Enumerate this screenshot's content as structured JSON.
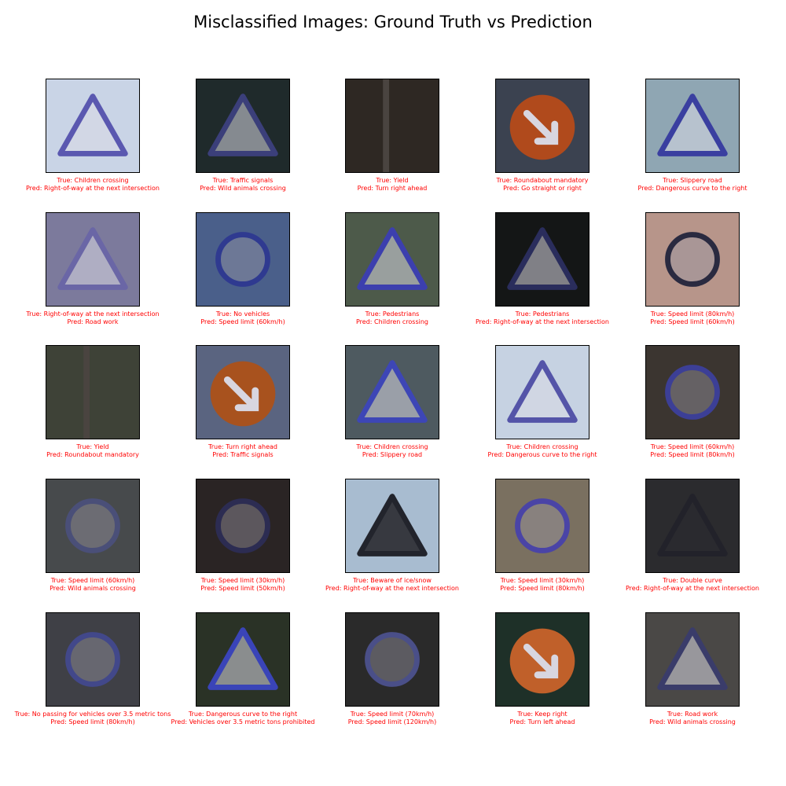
{
  "title": "Misclassified Images: Ground Truth vs Prediction",
  "true_prefix": "True: ",
  "pred_prefix": "Pred: ",
  "caption_color": "#ff0000",
  "items": [
    {
      "true_label": "Children crossing",
      "pred_label": "Right-of-way at the next intersection",
      "sign": "triangle",
      "bg": "#c9d4e6",
      "sign_color": "#5a58b0"
    },
    {
      "true_label": "Traffic signals",
      "pred_label": "Wild animals crossing",
      "sign": "triangle",
      "bg": "#1f2a2b",
      "sign_color": "#3b3f7a"
    },
    {
      "true_label": "Yield",
      "pred_label": "Turn right ahead",
      "sign": "none",
      "bg": "#2e2823",
      "sign_color": "#4b4a55"
    },
    {
      "true_label": "Roundabout mandatory",
      "pred_label": "Go straight or right",
      "sign": "circle-filled",
      "bg": "#3b4250",
      "sign_color": "#b04a1c"
    },
    {
      "true_label": "Slippery road",
      "pred_label": "Dangerous curve to the right",
      "sign": "triangle",
      "bg": "#8fa6b3",
      "sign_color": "#3a3fa0"
    },
    {
      "true_label": "Right-of-way at the next intersection",
      "pred_label": "Road work",
      "sign": "triangle",
      "bg": "#7c7a9c",
      "sign_color": "#6a66a6"
    },
    {
      "true_label": "No vehicles",
      "pred_label": "Speed limit (60km/h)",
      "sign": "circle-ring",
      "bg": "#4a5f8a",
      "sign_color": "#2f3a90"
    },
    {
      "true_label": "Pedestrians",
      "pred_label": "Children crossing",
      "sign": "triangle",
      "bg": "#4d5a4a",
      "sign_color": "#3c3fae"
    },
    {
      "true_label": "Pedestrians",
      "pred_label": "Right-of-way at the next intersection",
      "sign": "triangle",
      "bg": "#141616",
      "sign_color": "#2a2d5c"
    },
    {
      "true_label": "Speed limit (80km/h)",
      "pred_label": "Speed limit (60km/h)",
      "sign": "circle-ring",
      "bg": "#b7958a",
      "sign_color": "#2a2a40"
    },
    {
      "true_label": "Yield",
      "pred_label": "Roundabout mandatory",
      "sign": "none",
      "bg": "#3e4237",
      "sign_color": "#2f3060"
    },
    {
      "true_label": "Turn right ahead",
      "pred_label": "Traffic signals",
      "sign": "circle-filled",
      "bg": "#5a6480",
      "sign_color": "#a8521e"
    },
    {
      "true_label": "Children crossing",
      "pred_label": "Slippery road",
      "sign": "triangle",
      "bg": "#4e5a60",
      "sign_color": "#3d46b6"
    },
    {
      "true_label": "Children crossing",
      "pred_label": "Dangerous curve to the right",
      "sign": "triangle",
      "bg": "#c6d2e2",
      "sign_color": "#5454a8"
    },
    {
      "true_label": "Speed limit (60km/h)",
      "pred_label": "Speed limit (80km/h)",
      "sign": "circle-ring",
      "bg": "#3b3530",
      "sign_color": "#3c3f96"
    },
    {
      "true_label": "Speed limit (60km/h)",
      "pred_label": "Wild animals crossing",
      "sign": "circle-ring",
      "bg": "#474a4c",
      "sign_color": "#4a4f78"
    },
    {
      "true_label": "Speed limit (30km/h)",
      "pred_label": "Speed limit (50km/h)",
      "sign": "circle-ring",
      "bg": "#2a2424",
      "sign_color": "#2c2c52"
    },
    {
      "true_label": "Beware of ice/snow",
      "pred_label": "Right-of-way at the next intersection",
      "sign": "triangle-dark",
      "bg": "#a8bcd0",
      "sign_color": "#22242c"
    },
    {
      "true_label": "Speed limit (30km/h)",
      "pred_label": "Speed limit (80km/h)",
      "sign": "circle-ring",
      "bg": "#7a7060",
      "sign_color": "#4a44a6"
    },
    {
      "true_label": "Double curve",
      "pred_label": "Right-of-way at the next intersection",
      "sign": "triangle-dark",
      "bg": "#2b2b2e",
      "sign_color": "#22222a"
    },
    {
      "true_label": "No passing for vehicles over 3.5 metric tons",
      "pred_label": "Speed limit (80km/h)",
      "sign": "circle-ring",
      "bg": "#3f4046",
      "sign_color": "#42488a"
    },
    {
      "true_label": "Dangerous curve to the right",
      "pred_label": "Vehicles over 3.5 metric tons prohibited",
      "sign": "triangle",
      "bg": "#2a3226",
      "sign_color": "#3a44b8"
    },
    {
      "true_label": "Speed limit (70km/h)",
      "pred_label": "Speed limit (120km/h)",
      "sign": "circle-ring",
      "bg": "#2a2a2a",
      "sign_color": "#4a4f88"
    },
    {
      "true_label": "Keep right",
      "pred_label": "Turn left ahead",
      "sign": "circle-filled",
      "bg": "#1e3028",
      "sign_color": "#c0602a"
    },
    {
      "true_label": "Road work",
      "pred_label": "Wild animals crossing",
      "sign": "triangle",
      "bg": "#4a4846",
      "sign_color": "#3a3c6a"
    }
  ]
}
